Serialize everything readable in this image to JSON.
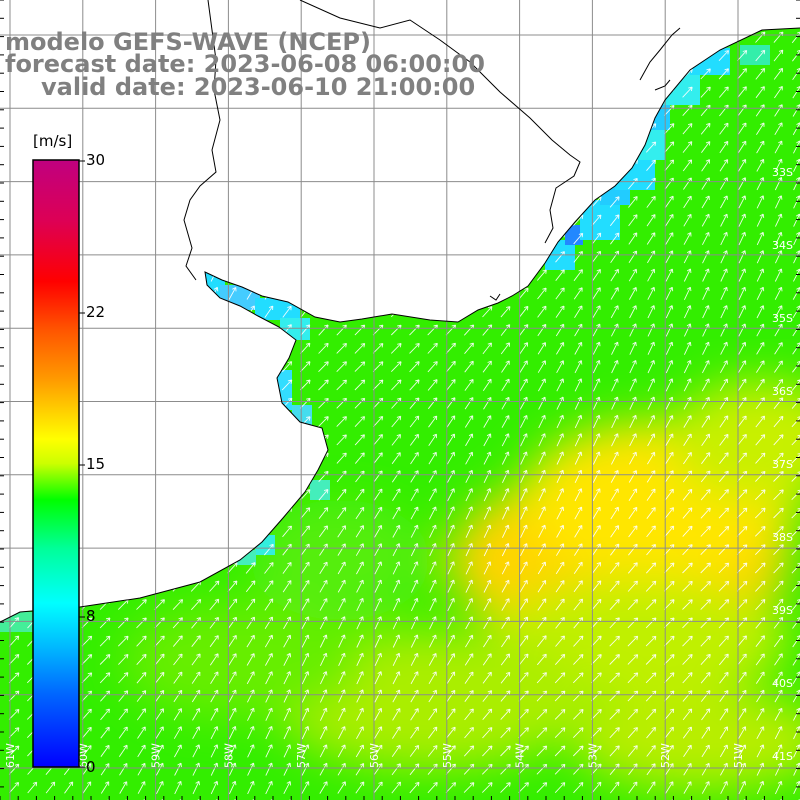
{
  "title": {
    "line1": "modelo GEFS-WAVE (NCEP)",
    "line2": "forecast date: 2023-06-08 06:00:00",
    "line3": "valid date: 2023-06-10 21:00:00"
  },
  "colorbar": {
    "unit": "[m/s]",
    "ticks": [
      "30",
      "22",
      "15",
      "8",
      "0"
    ],
    "min": 0,
    "max": 30
  },
  "lat_labels": [
    "33S",
    "34S",
    "35S",
    "36S",
    "37S",
    "38S",
    "39S",
    "40S",
    "41S"
  ],
  "lon_labels": [
    "61W",
    "60W",
    "59W",
    "58W",
    "57W",
    "56W",
    "55W",
    "54W",
    "53W",
    "52W",
    "51W"
  ],
  "colors": {
    "land": "#ffffff",
    "grid": "#8c8c8c",
    "coast": "#000000",
    "arrow": "#ffffff",
    "title": "#808080"
  }
}
